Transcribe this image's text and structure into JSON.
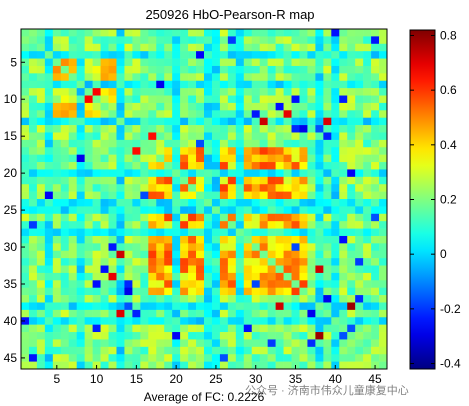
{
  "chart_data": {
    "type": "heatmap",
    "title": "250926 HbO-Pearson-R map",
    "xlabel": "Average of FC: 0.2226",
    "ylabel": "",
    "n": 46,
    "x_ticks": [
      5,
      10,
      15,
      20,
      25,
      30,
      35,
      40,
      45
    ],
    "y_ticks": [
      5,
      10,
      15,
      20,
      25,
      30,
      35,
      40,
      45
    ],
    "colorbar": {
      "min": -0.42,
      "max": 0.82,
      "colormap": "jet",
      "ticks": [
        -0.4,
        -0.2,
        0,
        0.2,
        0.4,
        0.6,
        0.8
      ],
      "tick_labels": [
        "-0.4",
        "-0.2",
        "0",
        "0.2",
        "0.4",
        "0.6",
        "0.8"
      ]
    },
    "average_fc": 0.2226,
    "low_correlation_channels": [
      4,
      8,
      13,
      20,
      24,
      25,
      28,
      38,
      40
    ],
    "high_correlation_blocks": [
      {
        "rows": [
          17,
          36
        ],
        "cols": [
          17,
          36
        ],
        "level": 0.45
      },
      {
        "rows": [
          5,
          12
        ],
        "cols": [
          5,
          12
        ],
        "level": 0.35
      }
    ],
    "watermark_text": "公众号 · 济南市伟众儿童康复中心"
  }
}
